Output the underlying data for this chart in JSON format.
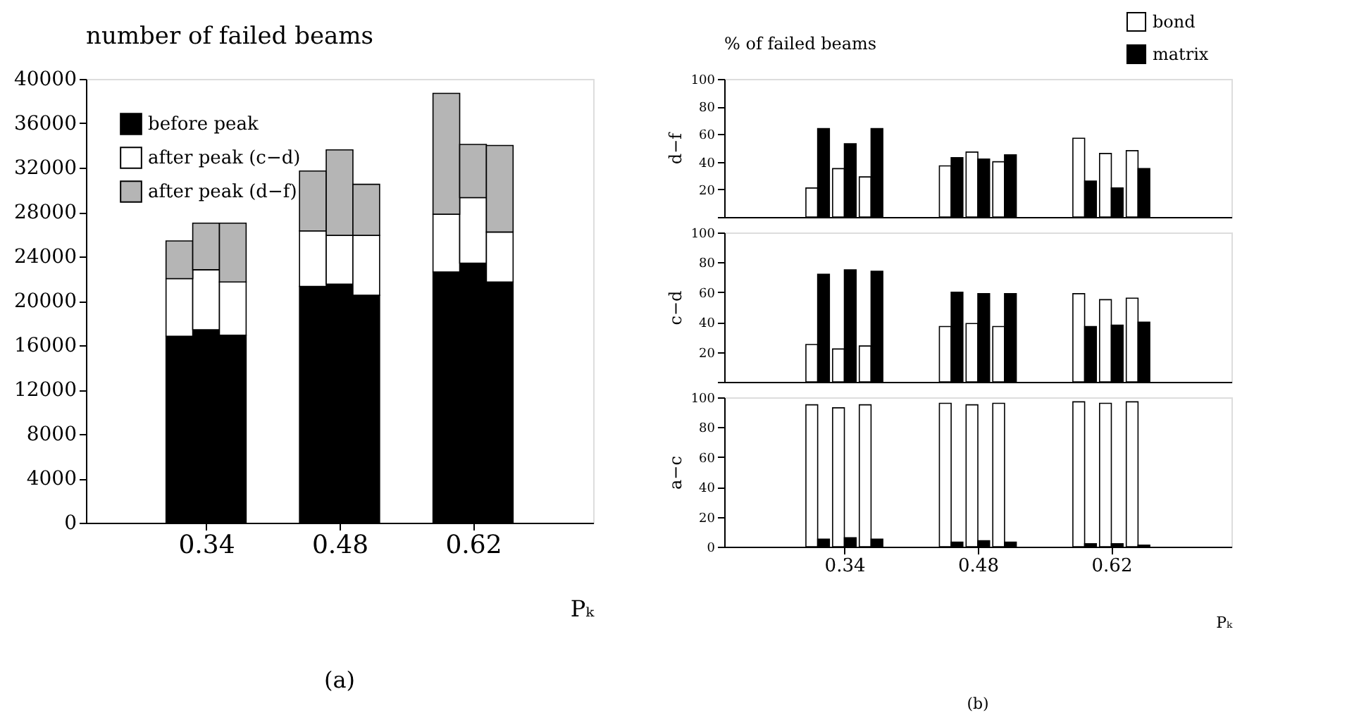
{
  "chart_data": [
    {
      "type": "bar",
      "title": "number of failed beams",
      "xlabel": "Pₖ",
      "stacked": true,
      "legend": "top left",
      "categories": [
        null,
        null,
        null,
        null,
        "0.34",
        null,
        null,
        null,
        null,
        "0.48",
        null,
        null,
        null,
        null,
        "0.62",
        null,
        null,
        null,
        null
      ],
      "series": [
        {
          "name": "before peak",
          "color": "#000000",
          "values": [
            null,
            null,
            null,
            16800,
            17400,
            16900,
            null,
            null,
            21300,
            21500,
            20500,
            null,
            null,
            22600,
            23400,
            21700,
            null,
            null,
            null
          ]
        },
        {
          "name": "after peak (c−d)",
          "color": "#ffffff",
          "values": [
            null,
            null,
            null,
            5200,
            5400,
            4800,
            null,
            null,
            5000,
            4400,
            5400,
            null,
            null,
            5200,
            5900,
            4500,
            null,
            null,
            null
          ]
        },
        {
          "name": "after peak (d−f)",
          "color": "#b5b5b5",
          "values": [
            null,
            null,
            null,
            3400,
            4200,
            5300,
            null,
            null,
            5400,
            7700,
            4600,
            null,
            null,
            10900,
            4800,
            7800,
            null,
            null,
            null
          ]
        }
      ],
      "ylim": [
        0,
        40000
      ],
      "yticks": [
        0,
        4000,
        8000,
        12000,
        16000,
        20000,
        24000,
        28000,
        32000,
        36000,
        40000
      ],
      "annotations": [
        "(a)"
      ]
    },
    {
      "type": "bar",
      "title": "% of failed beams",
      "ylabel": "d−f",
      "legend": "top right",
      "tick_labels": "y",
      "categories": [
        null,
        null,
        null,
        null,
        "0.34",
        null,
        null,
        null,
        null,
        "0.48",
        null,
        null,
        null,
        null,
        "0.62",
        null,
        null,
        null,
        null
      ],
      "series": [
        {
          "name": "bond",
          "color": "#ffffff",
          "values": [
            null,
            null,
            null,
            21,
            35,
            29,
            null,
            null,
            37,
            47,
            40,
            null,
            null,
            57,
            46,
            48,
            null,
            null,
            null
          ]
        },
        {
          "name": "matrix",
          "color": "#000000",
          "values": [
            null,
            null,
            null,
            64,
            53,
            64,
            null,
            null,
            43,
            42,
            45,
            null,
            null,
            26,
            21,
            35,
            null,
            null,
            null
          ]
        }
      ],
      "ylim": [
        0,
        100
      ],
      "yticks": [
        {
          "value": 0,
          "label": null
        },
        20,
        40,
        60,
        80,
        100
      ]
    },
    {
      "type": "bar",
      "ylabel": "c−d",
      "tick_labels": "y",
      "categories": [
        null,
        null,
        null,
        null,
        "0.34",
        null,
        null,
        null,
        null,
        "0.48",
        null,
        null,
        null,
        null,
        "0.62",
        null,
        null,
        null,
        null
      ],
      "series": [
        {
          "name": "bond",
          "color": "#ffffff",
          "values": [
            null,
            null,
            null,
            25,
            22,
            24,
            null,
            null,
            37,
            39,
            37,
            null,
            null,
            59,
            55,
            56,
            null,
            null,
            null
          ]
        },
        {
          "name": "matrix",
          "color": "#000000",
          "values": [
            null,
            null,
            null,
            72,
            75,
            74,
            null,
            null,
            60,
            59,
            59,
            null,
            null,
            37,
            38,
            40,
            null,
            null,
            null
          ]
        }
      ],
      "ylim": [
        0,
        100
      ],
      "yticks": [
        {
          "value": 0,
          "label": null
        },
        20,
        40,
        60,
        80,
        100
      ]
    },
    {
      "type": "bar",
      "ylabel": "a−c",
      "xlabel": "Pₖ",
      "categories": [
        null,
        null,
        null,
        null,
        "0.34",
        null,
        null,
        null,
        null,
        "0.48",
        null,
        null,
        null,
        null,
        "0.62",
        null,
        null,
        null,
        null
      ],
      "series": [
        {
          "name": "bond",
          "color": "#ffffff",
          "values": [
            null,
            null,
            null,
            95,
            93,
            95,
            null,
            null,
            96,
            95,
            96,
            null,
            null,
            97,
            96,
            97,
            null,
            null,
            null
          ]
        },
        {
          "name": "matrix",
          "color": "#000000",
          "values": [
            null,
            null,
            null,
            5,
            6,
            5,
            null,
            null,
            3,
            4,
            3,
            null,
            null,
            2,
            2,
            1,
            null,
            null,
            null
          ]
        }
      ],
      "ylim": [
        0,
        100
      ],
      "yticks": [
        0,
        20,
        40,
        60,
        80,
        100
      ],
      "annotations": [
        "(b)"
      ]
    }
  ]
}
